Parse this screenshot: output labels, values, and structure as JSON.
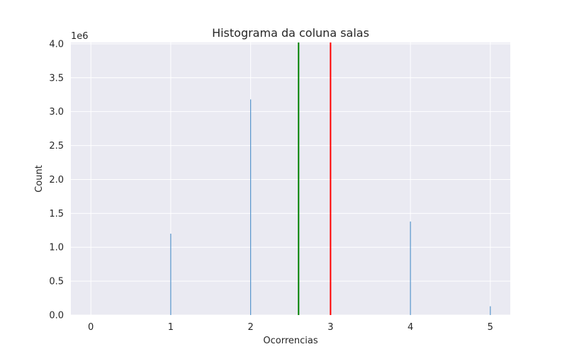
{
  "chart_data": {
    "type": "bar",
    "title": "Histograma da coluna salas",
    "xlabel": "Ocorrencias",
    "ylabel": "Count",
    "y_offset_text": "1e6",
    "xlim": [
      -0.25,
      5.25
    ],
    "ylim": [
      0,
      4.02
    ],
    "x_ticks": [
      0,
      1,
      2,
      3,
      4,
      5
    ],
    "y_ticks": [
      0.0,
      0.5,
      1.0,
      1.5,
      2.0,
      2.5,
      3.0,
      3.5,
      4.0
    ],
    "x_tick_labels": [
      "0",
      "1",
      "2",
      "3",
      "4",
      "5"
    ],
    "y_tick_labels": [
      "0.0",
      "0.5",
      "1.0",
      "1.5",
      "2.0",
      "2.5",
      "3.0",
      "3.5",
      "4.0"
    ],
    "bars": [
      {
        "x": 0,
        "value": 0.0
      },
      {
        "x": 1,
        "value": 1.2
      },
      {
        "x": 2,
        "value": 3.18
      },
      {
        "x": 4,
        "value": 1.38
      },
      {
        "x": 5,
        "value": 0.13
      }
    ],
    "bar_width": 0.01,
    "vlines": [
      {
        "x": 2.6,
        "color": "#008000"
      },
      {
        "x": 3.0,
        "color": "#ff0000"
      }
    ],
    "grid": true,
    "bar_color": "#4c8fc9",
    "background": "#eaeaf2"
  }
}
